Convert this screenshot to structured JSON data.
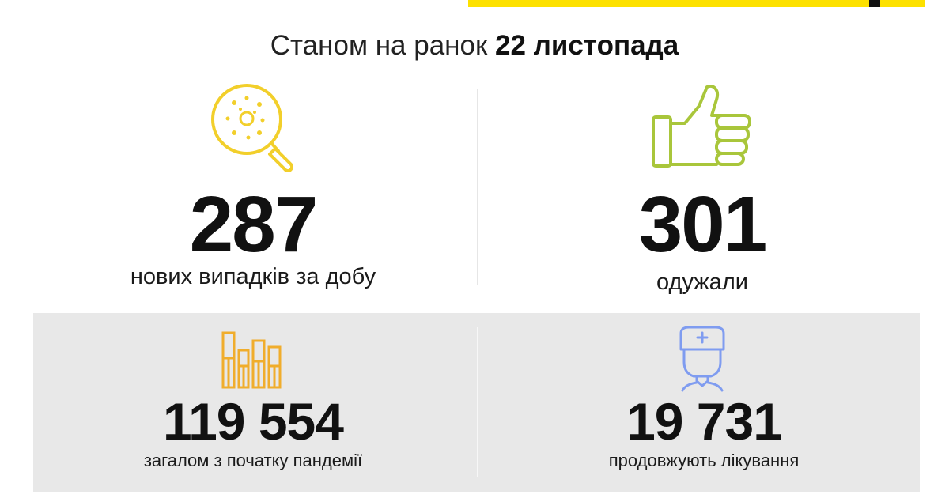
{
  "header": {
    "subtitle_prefix": "Станом на ранок",
    "subtitle_date": "22 листопада"
  },
  "stats": {
    "new_cases": {
      "value": "287",
      "label": "нових випадків за добу",
      "icon": "magnifier-virus-icon",
      "color": "#f2cf2b"
    },
    "recovered": {
      "value": "301",
      "label": "одужали",
      "icon": "thumbs-up-icon",
      "color": "#a9c63b"
    },
    "total": {
      "value": "119 554",
      "label": "загалом з початку пандемії",
      "icon": "bar-chart-icon",
      "color": "#f0ad2c"
    },
    "in_treatment": {
      "value": "19 731",
      "label": "продовжують лікування",
      "icon": "doctor-icon",
      "color": "#7f9cf0"
    }
  },
  "colors": {
    "accent": "#fde100",
    "panel": "#e8e8e8"
  }
}
